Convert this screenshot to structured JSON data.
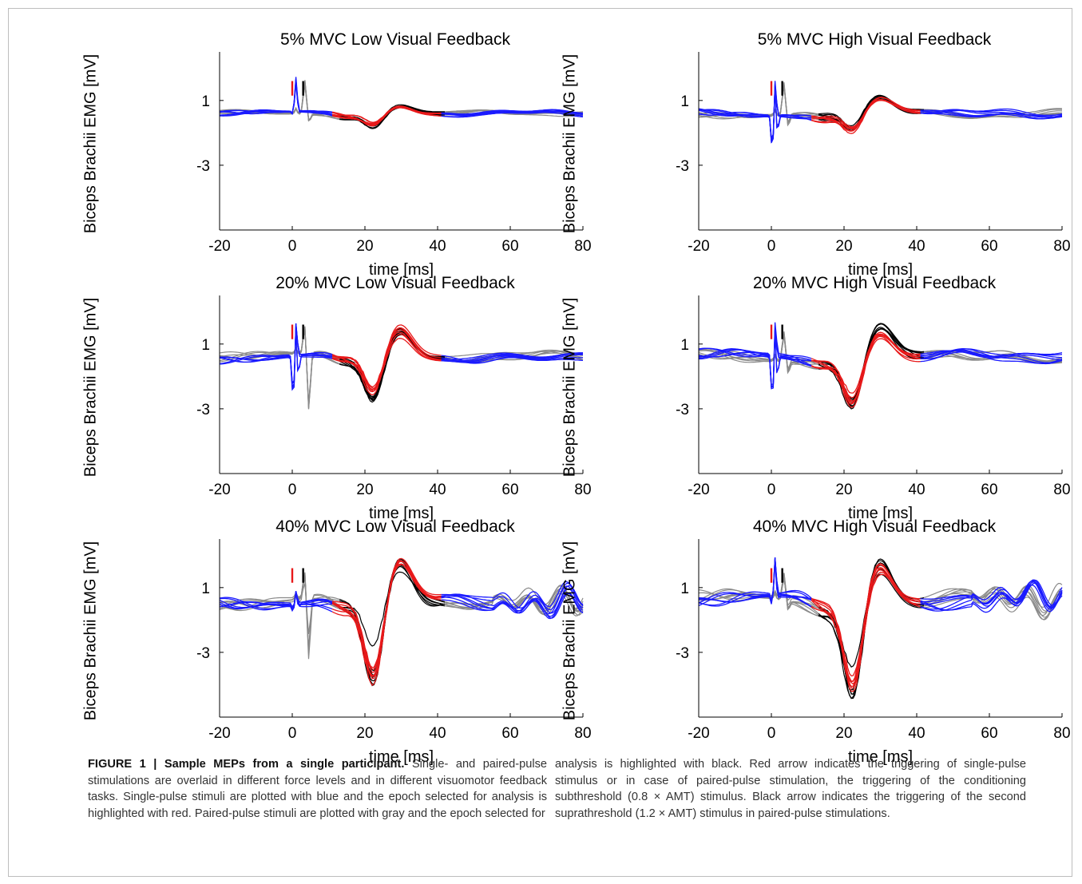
{
  "colors": {
    "single": "#1a1aff",
    "paired": "#8a8a8a",
    "paired_selected": "#000000",
    "single_selected": "#e8191a",
    "red_arrow": "#e8191a",
    "black_arrow": "#000000"
  },
  "chart_data": [
    {
      "type": "line",
      "title": "5% MVC  Low Visual Feedback",
      "xlabel": "time [ms]",
      "ylabel": "Biceps Brachii EMG [mV]",
      "xlim": [
        -20,
        80
      ],
      "ylim": [
        -7,
        4
      ],
      "xticks": [
        -20,
        0,
        20,
        40,
        60,
        80
      ],
      "yticks": [
        1,
        -3
      ],
      "depth": 0.6,
      "neg_amp": 0.8,
      "pos_amp": 0.6,
      "blue_spike": [
        2.3,
        -0.3
      ],
      "gray_spike": [
        1.8,
        -0.5
      ],
      "pp": 0
    },
    {
      "type": "line",
      "title": "5% MVC  High Visual Feedback",
      "xlabel": "time [ms]",
      "ylabel": "Biceps Brachii EMG [mV]",
      "xlim": [
        -20,
        80
      ],
      "ylim": [
        -7,
        4
      ],
      "xticks": [
        -20,
        0,
        20,
        40,
        60,
        80
      ],
      "yticks": [
        1,
        -3
      ],
      "depth": 0.9,
      "neg_amp": 1.2,
      "pos_amp": 0.9,
      "blue_spike": [
        2.5,
        -3.0
      ],
      "gray_spike": [
        1.7,
        -0.6
      ],
      "pp": 1
    },
    {
      "type": "line",
      "title": "20% MVC Low Visual Feedback",
      "xlabel": "time [ms]",
      "ylabel": "Biceps Brachii EMG [mV]",
      "xlim": [
        -20,
        80
      ],
      "ylim": [
        -7,
        4
      ],
      "xticks": [
        -20,
        0,
        20,
        40,
        60,
        80
      ],
      "yticks": [
        1,
        -3
      ],
      "depth": 1.2,
      "neg_amp": 2.8,
      "pos_amp": 1.9,
      "blue_spike": [
        2.4,
        -3.5
      ],
      "gray_spike": [
        1.6,
        -3.0
      ],
      "pp": 2
    },
    {
      "type": "line",
      "title": "20% MVC High Visual Feedback",
      "xlabel": "time [ms]",
      "ylabel": "Biceps Brachii EMG [mV]",
      "xlim": [
        -20,
        80
      ],
      "ylim": [
        -7,
        4
      ],
      "xticks": [
        -20,
        0,
        20,
        40,
        60,
        80
      ],
      "yticks": [
        1,
        -3
      ],
      "depth": 1.1,
      "neg_amp": 3.0,
      "pos_amp": 1.8,
      "blue_spike": [
        2.2,
        -3.6
      ],
      "gray_spike": [
        1.5,
        -0.6
      ],
      "pp": 3
    },
    {
      "type": "line",
      "title": "40% MVC Low Visual Feedback",
      "xlabel": "time [ms]",
      "ylabel": "Biceps Brachii EMG [mV]",
      "xlim": [
        -20,
        80
      ],
      "ylim": [
        -7,
        4
      ],
      "xticks": [
        -20,
        0,
        20,
        40,
        60,
        80
      ],
      "yticks": [
        1,
        -3
      ],
      "depth": 2.2,
      "neg_amp": 5.5,
      "pos_amp": 2.4,
      "blue_spike": [
        0.9,
        -0.5
      ],
      "gray_spike": [
        1.5,
        -3.0
      ],
      "pp": 4
    },
    {
      "type": "line",
      "title": "40% MVC High Visual Feedback",
      "xlabel": "time [ms]",
      "ylabel": "Biceps Brachii EMG [mV]",
      "xlim": [
        -20,
        80
      ],
      "ylim": [
        -7,
        4
      ],
      "xticks": [
        -20,
        0,
        20,
        40,
        60,
        80
      ],
      "yticks": [
        1,
        -3
      ],
      "depth": 2.0,
      "neg_amp": 5.7,
      "pos_amp": 2.6,
      "blue_spike": [
        2.4,
        -0.8
      ],
      "gray_spike": [
        1.3,
        -0.5
      ],
      "pp": 5
    }
  ],
  "caption": {
    "heading": "FIGURE 1 | Sample MEPs from a single participant.",
    "left": "Single- and paired-pulse stimulations are overlaid in different force levels and in different visuomotor feedback tasks. Single-pulse stimuli are plotted with blue and the epoch selected for analysis is highlighted with red. Paired-pulse stimuli are plotted with gray and the epoch selected for",
    "right": "analysis is highlighted with black. Red arrow indicates the triggering of single-pulse stimulus or in case of paired-pulse stimulation, the triggering of the conditioning subthreshold (0.8 × AMT) stimulus. Black arrow indicates the triggering of the second suprathreshold (1.2 × AMT) stimulus in paired-pulse stimulations."
  }
}
